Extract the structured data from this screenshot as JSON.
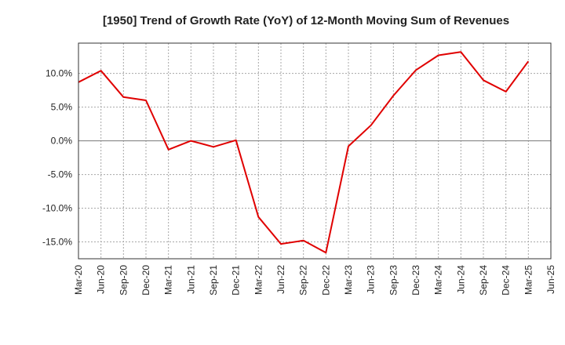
{
  "chart_data": {
    "type": "line",
    "title": "[1950]  Trend of Growth Rate (YoY) of 12-Month Moving Sum of Revenues",
    "xlabel": "",
    "ylabel": "",
    "ylim": [
      -17.5,
      14.5
    ],
    "yticks": [
      10,
      5,
      0,
      -5,
      -10,
      -15
    ],
    "ytick_labels": [
      "10.0%",
      "5.0%",
      "0.0%",
      "-5.0%",
      "-10.0%",
      "-15.0%"
    ],
    "x_tick_labels": [
      "Mar-20",
      "Jun-20",
      "Sep-20",
      "Dec-20",
      "Mar-21",
      "Jun-21",
      "Sep-21",
      "Dec-21",
      "Mar-22",
      "Jun-22",
      "Sep-22",
      "Dec-22",
      "Mar-23",
      "Jun-23",
      "Sep-23",
      "Dec-23",
      "Mar-24",
      "Jun-24",
      "Sep-24",
      "Dec-24",
      "Mar-25",
      "Jun-25"
    ],
    "grid": true,
    "series": [
      {
        "color": "#e00000",
        "values": [
          8.7,
          10.4,
          6.5,
          6.0,
          -1.3,
          0.0,
          -0.9,
          0.1,
          -11.3,
          -15.3,
          -14.8,
          -16.6,
          -0.8,
          2.3,
          6.7,
          10.5,
          12.7,
          13.2,
          9.0,
          7.3,
          11.8
        ]
      }
    ]
  }
}
